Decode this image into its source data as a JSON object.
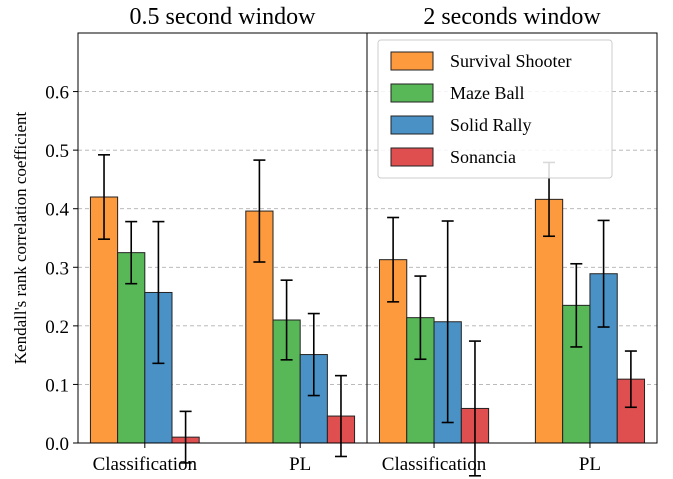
{
  "chart_data": [
    {
      "type": "bar",
      "title": "0.5 second window",
      "ylabel": "Kendall's rank correlation coefficient",
      "categories": [
        "Classification",
        "PL"
      ],
      "series": [
        {
          "name": "Survival Shooter",
          "color": "#fe9a3e",
          "values": [
            0.42,
            0.396
          ],
          "errors": [
            0.072,
            0.087
          ]
        },
        {
          "name": "Maze Ball",
          "color": "#58b858",
          "values": [
            0.325,
            0.21
          ],
          "errors": [
            0.053,
            0.068
          ]
        },
        {
          "name": "Solid Rally",
          "color": "#4a92c6",
          "values": [
            0.257,
            0.151
          ],
          "errors": [
            0.121,
            0.07
          ]
        },
        {
          "name": "Sonancia",
          "color": "#e04f50",
          "values": [
            0.01,
            0.046
          ],
          "errors": [
            0.044,
            0.069
          ]
        }
      ],
      "ylim": [
        0,
        0.7
      ],
      "yticks": [
        {
          "value": 0,
          "label": "0.0"
        },
        0.1,
        0.2,
        0.3,
        0.4,
        0.5,
        0.6
      ],
      "grid": true
    },
    {
      "type": "bar",
      "title": "2 seconds window",
      "categories": [
        "Classification",
        "PL"
      ],
      "series": [
        {
          "name": "Survival Shooter",
          "color": "#fe9a3e",
          "values": [
            0.313,
            0.416
          ],
          "errors": [
            0.072,
            0.063
          ]
        },
        {
          "name": "Maze Ball",
          "color": "#58b858",
          "values": [
            0.214,
            0.235
          ],
          "errors": [
            0.071,
            0.071
          ]
        },
        {
          "name": "Solid Rally",
          "color": "#4a92c6",
          "values": [
            0.207,
            0.289
          ],
          "errors": [
            0.172,
            0.091
          ]
        },
        {
          "name": "Sonancia",
          "color": "#e04f50",
          "values": [
            0.059,
            0.109
          ],
          "errors": [
            0.115,
            0.048
          ]
        }
      ],
      "ylim": [
        0,
        0.7
      ],
      "grid": true,
      "legend": "upper left"
    }
  ]
}
